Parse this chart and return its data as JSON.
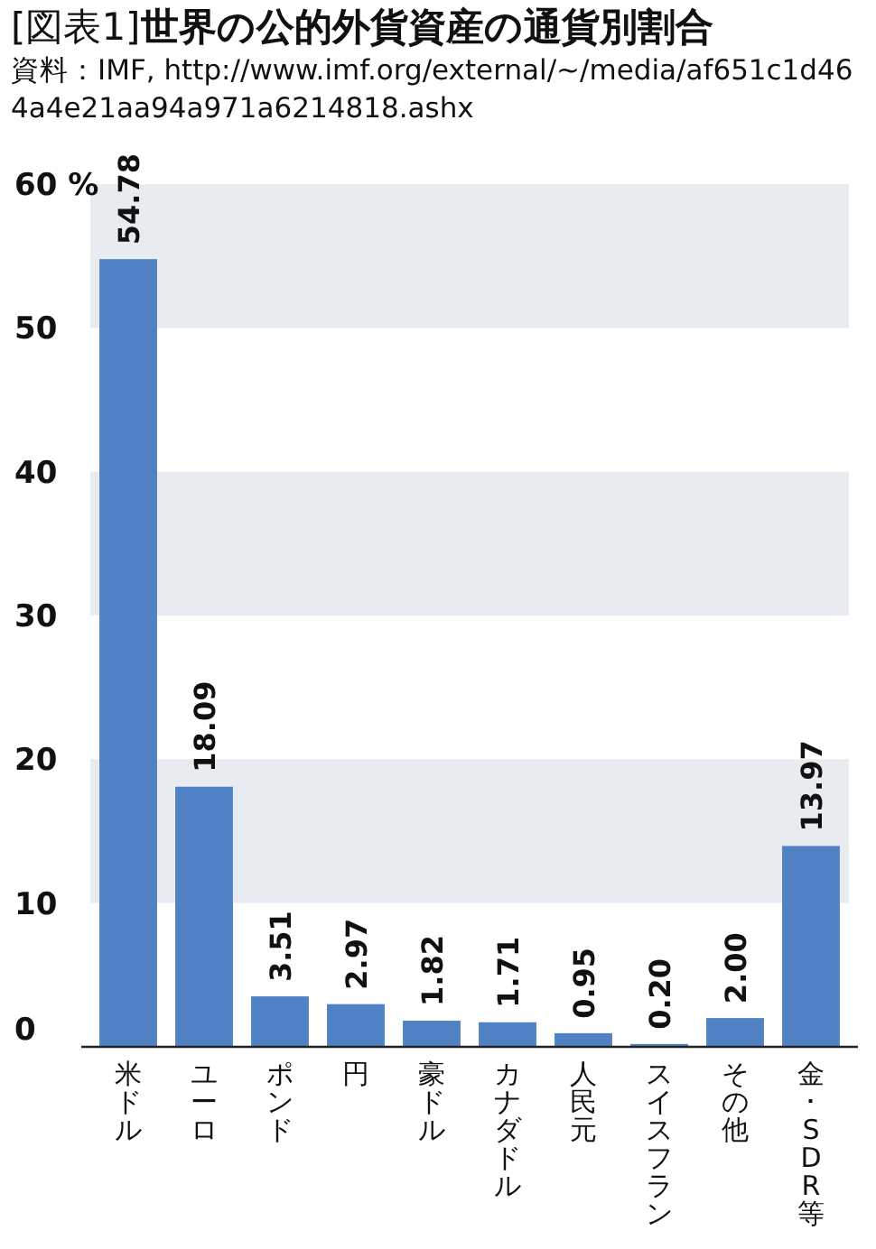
{
  "chart_data": {
    "type": "bar",
    "title": "[図表1]**世界の公的外貨資産の通貨別割合**",
    "annotations": [
      "資料：IMF, http://www.imf.org/external/~/media/af651c1d464a4e21aa94a971a6214818.ashx"
    ],
    "categories": [
      "米ドル",
      "ユーロ",
      "ポンド",
      "円",
      "豪ドル",
      "カナダドル",
      "人民元",
      "スイスフラン",
      "その他",
      "金･SDR等"
    ],
    "values": [
      54.78,
      18.09,
      3.51,
      2.97,
      1.82,
      1.71,
      0.95,
      0.2,
      2.0,
      13.97
    ],
    "value_labels": [
      "54.78",
      "18.09",
      "3.51",
      "2.97",
      "1.82",
      "1.71",
      "0.95",
      "0.20",
      "2.00",
      "13.97"
    ],
    "color": "#4f81c4",
    "ylim": [
      0,
      60
    ],
    "yticks": [
      0,
      10,
      20,
      30,
      40,
      50,
      {
        "value": 60,
        "label": "60 %"
      }
    ],
    "bands": [
      {
        "axis": "y",
        "from": 10,
        "to": 20,
        "color": "#e8ecf0"
      },
      {
        "axis": "y",
        "from": 30,
        "to": 40,
        "color": "#e8ecf0"
      },
      {
        "axis": "y",
        "from": 50,
        "to": 60,
        "color": "#e8ecf0"
      }
    ]
  }
}
